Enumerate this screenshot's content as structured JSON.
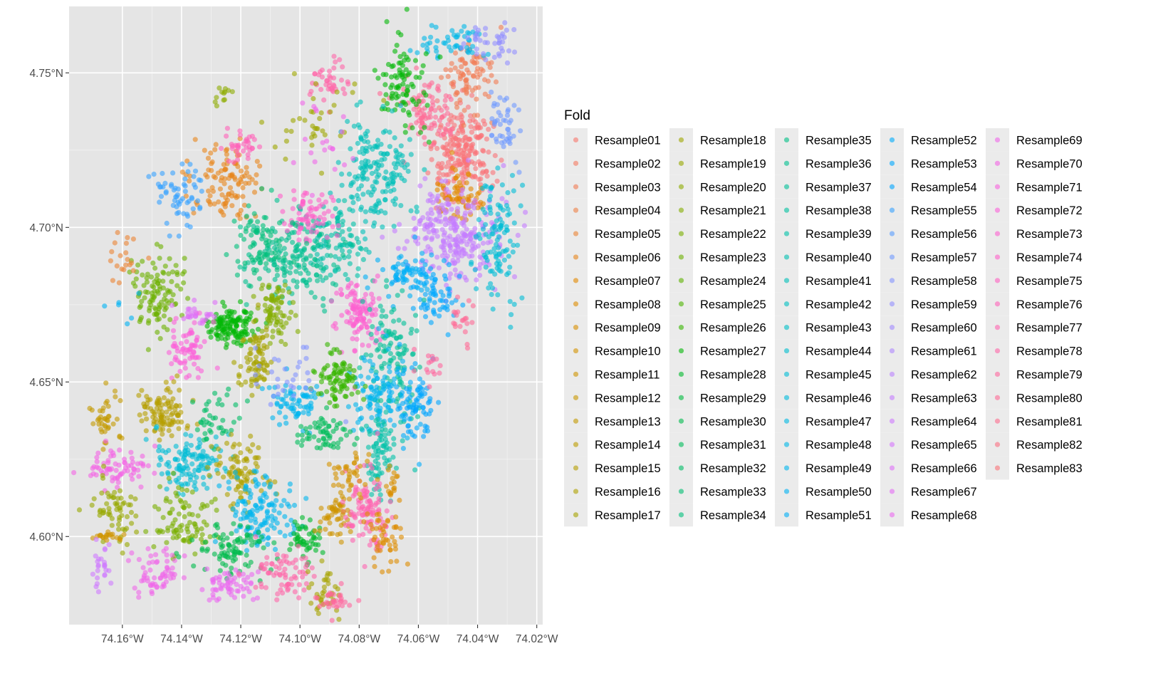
{
  "chart_data": {
    "type": "scatter",
    "title": "",
    "xlabel": "",
    "ylabel": "",
    "xlim": [
      -74.178,
      -74.018
    ],
    "ylim": [
      4.5715,
      4.7715
    ],
    "grid": true,
    "legend_position": "right",
    "legend_title": "Fold",
    "x_ticks": [
      {
        "value": -74.16,
        "label": "74.16°W"
      },
      {
        "value": -74.14,
        "label": "74.14°W"
      },
      {
        "value": -74.12,
        "label": "74.12°W"
      },
      {
        "value": -74.1,
        "label": "74.10°W"
      },
      {
        "value": -74.08,
        "label": "74.08°W"
      },
      {
        "value": -74.06,
        "label": "74.06°W"
      },
      {
        "value": -74.04,
        "label": "74.04°W"
      },
      {
        "value": -74.02,
        "label": "74.02°W"
      }
    ],
    "y_ticks": [
      {
        "value": 4.6,
        "label": "4.60°N"
      },
      {
        "value": 4.65,
        "label": "4.65°N"
      },
      {
        "value": 4.7,
        "label": "4.70°N"
      },
      {
        "value": 4.75,
        "label": "4.75°N"
      }
    ],
    "series_count": 83,
    "series_names": [
      "Resample01",
      "Resample02",
      "Resample03",
      "Resample04",
      "Resample05",
      "Resample06",
      "Resample07",
      "Resample08",
      "Resample09",
      "Resample10",
      "Resample11",
      "Resample12",
      "Resample13",
      "Resample14",
      "Resample15",
      "Resample16",
      "Resample17",
      "Resample18",
      "Resample19",
      "Resample20",
      "Resample21",
      "Resample22",
      "Resample23",
      "Resample24",
      "Resample25",
      "Resample26",
      "Resample27",
      "Resample28",
      "Resample29",
      "Resample30",
      "Resample31",
      "Resample32",
      "Resample33",
      "Resample34",
      "Resample35",
      "Resample36",
      "Resample37",
      "Resample38",
      "Resample39",
      "Resample40",
      "Resample41",
      "Resample42",
      "Resample43",
      "Resample44",
      "Resample45",
      "Resample46",
      "Resample47",
      "Resample48",
      "Resample49",
      "Resample50",
      "Resample51",
      "Resample52",
      "Resample53",
      "Resample54",
      "Resample55",
      "Resample56",
      "Resample57",
      "Resample58",
      "Resample59",
      "Resample60",
      "Resample61",
      "Resample62",
      "Resample63",
      "Resample64",
      "Resample65",
      "Resample66",
      "Resample67",
      "Resample68",
      "Resample69",
      "Resample70",
      "Resample71",
      "Resample72",
      "Resample73",
      "Resample74",
      "Resample75",
      "Resample76",
      "Resample77",
      "Resample78",
      "Resample79",
      "Resample80",
      "Resample81",
      "Resample82",
      "Resample83"
    ],
    "point_alpha": 0.6,
    "clusters": [
      {
        "fold": "Resample83",
        "x": -74.045,
        "y": 4.723,
        "sx": 0.005,
        "sy": 0.008,
        "n": 220
      },
      {
        "fold": "Resample80",
        "x": -74.057,
        "y": 4.736,
        "sx": 0.004,
        "sy": 0.005,
        "n": 90
      },
      {
        "fold": "Resample07",
        "x": -74.047,
        "y": 4.711,
        "sx": 0.0045,
        "sy": 0.004,
        "n": 70
      },
      {
        "fold": "Resample03",
        "x": -74.042,
        "y": 4.748,
        "sx": 0.004,
        "sy": 0.006,
        "n": 80
      },
      {
        "fold": "Resample63",
        "x": -74.049,
        "y": 4.698,
        "sx": 0.008,
        "sy": 0.0075,
        "n": 260
      },
      {
        "fold": "Resample45",
        "x": -74.0335,
        "y": 4.695,
        "sx": 0.0035,
        "sy": 0.011,
        "n": 110
      },
      {
        "fold": "Resample48",
        "x": -74.047,
        "y": 4.76,
        "sx": 0.006,
        "sy": 0.003,
        "n": 50
      },
      {
        "fold": "Resample59",
        "x": -74.034,
        "y": 4.76,
        "sx": 0.004,
        "sy": 0.003,
        "n": 40
      },
      {
        "fold": "Resample57",
        "x": -74.031,
        "y": 4.735,
        "sx": 0.0025,
        "sy": 0.006,
        "n": 45
      },
      {
        "fold": "Resample27",
        "x": -74.065,
        "y": 4.748,
        "sx": 0.004,
        "sy": 0.008,
        "n": 90
      },
      {
        "fold": "Resample41",
        "x": -74.075,
        "y": 4.718,
        "sx": 0.006,
        "sy": 0.01,
        "n": 180
      },
      {
        "fold": "Resample39",
        "x": -74.088,
        "y": 4.696,
        "sx": 0.005,
        "sy": 0.006,
        "n": 90
      },
      {
        "fold": "Resample36",
        "x": -74.102,
        "y": 4.69,
        "sx": 0.008,
        "sy": 0.008,
        "n": 160
      },
      {
        "fold": "Resample51",
        "x": -74.064,
        "y": 4.685,
        "sx": 0.0045,
        "sy": 0.004,
        "n": 70
      },
      {
        "fold": "Resample53",
        "x": -74.054,
        "y": 4.678,
        "sx": 0.004,
        "sy": 0.005,
        "n": 60
      },
      {
        "fold": "Resample73",
        "x": -74.08,
        "y": 4.672,
        "sx": 0.004,
        "sy": 0.006,
        "n": 110
      },
      {
        "fold": "Resample37",
        "x": -74.068,
        "y": 4.66,
        "sx": 0.004,
        "sy": 0.009,
        "n": 110
      },
      {
        "fold": "Resample80",
        "x": -74.046,
        "y": 4.67,
        "sx": 0.002,
        "sy": 0.004,
        "n": 20
      },
      {
        "fold": "Resample74",
        "x": -74.097,
        "y": 4.704,
        "sx": 0.004,
        "sy": 0.004,
        "n": 70
      },
      {
        "fold": "Resample78",
        "x": -74.09,
        "y": 4.748,
        "sx": 0.003,
        "sy": 0.004,
        "n": 40
      },
      {
        "fold": "Resample18",
        "x": -74.095,
        "y": 4.733,
        "sx": 0.007,
        "sy": 0.008,
        "n": 35
      },
      {
        "fold": "Resample06",
        "x": -74.125,
        "y": 4.715,
        "sx": 0.006,
        "sy": 0.006,
        "n": 110
      },
      {
        "fold": "Resample55",
        "x": -74.14,
        "y": 4.71,
        "sx": 0.005,
        "sy": 0.005,
        "n": 60
      },
      {
        "fold": "Resample76",
        "x": -74.119,
        "y": 4.725,
        "sx": 0.003,
        "sy": 0.003,
        "n": 35
      },
      {
        "fold": "Resample34",
        "x": -74.113,
        "y": 4.695,
        "sx": 0.005,
        "sy": 0.006,
        "n": 80
      },
      {
        "fold": "Resample23",
        "x": -74.148,
        "y": 4.679,
        "sx": 0.005,
        "sy": 0.006,
        "n": 110
      },
      {
        "fold": "Resample27",
        "x": -74.123,
        "y": 4.668,
        "sx": 0.004,
        "sy": 0.003,
        "n": 130
      },
      {
        "fold": "Resample21",
        "x": -74.109,
        "y": 4.673,
        "sx": 0.003,
        "sy": 0.005,
        "n": 80
      },
      {
        "fold": "Resample17",
        "x": -74.115,
        "y": 4.656,
        "sx": 0.003,
        "sy": 0.005,
        "n": 80
      },
      {
        "fold": "Resample72",
        "x": -74.138,
        "y": 4.662,
        "sx": 0.003,
        "sy": 0.004,
        "n": 70
      },
      {
        "fold": "Resample66",
        "x": -74.134,
        "y": 4.672,
        "sx": 0.003,
        "sy": 0.002,
        "n": 25
      },
      {
        "fold": "Resample49",
        "x": -74.102,
        "y": 4.644,
        "sx": 0.004,
        "sy": 0.004,
        "n": 70
      },
      {
        "fold": "Resample49",
        "x": -74.074,
        "y": 4.645,
        "sx": 0.004,
        "sy": 0.007,
        "n": 100
      },
      {
        "fold": "Resample26",
        "x": -74.087,
        "y": 4.651,
        "sx": 0.004,
        "sy": 0.004,
        "n": 90
      },
      {
        "fold": "Resample39",
        "x": -74.073,
        "y": 4.626,
        "sx": 0.003,
        "sy": 0.007,
        "n": 80
      },
      {
        "fold": "Resample31",
        "x": -74.092,
        "y": 4.633,
        "sx": 0.004,
        "sy": 0.003,
        "n": 60
      },
      {
        "fold": "Resample58",
        "x": -74.105,
        "y": 4.65,
        "sx": 0.006,
        "sy": 0.007,
        "n": 30
      },
      {
        "fold": "Resample52",
        "x": -74.063,
        "y": 4.643,
        "sx": 0.003,
        "sy": 0.007,
        "n": 40
      },
      {
        "fold": "Resample15",
        "x": -74.145,
        "y": 4.64,
        "sx": 0.004,
        "sy": 0.004,
        "n": 100
      },
      {
        "fold": "Resample13",
        "x": -74.165,
        "y": 4.638,
        "sx": 0.003,
        "sy": 0.005,
        "n": 40
      },
      {
        "fold": "Resample45",
        "x": -74.138,
        "y": 4.625,
        "sx": 0.006,
        "sy": 0.005,
        "n": 120
      },
      {
        "fold": "Resample32",
        "x": -74.129,
        "y": 4.638,
        "sx": 0.004,
        "sy": 0.004,
        "n": 40
      },
      {
        "fold": "Resample70",
        "x": -74.161,
        "y": 4.622,
        "sx": 0.005,
        "sy": 0.003,
        "n": 70
      },
      {
        "fold": "Resample16",
        "x": -74.12,
        "y": 4.62,
        "sx": 0.005,
        "sy": 0.006,
        "n": 90
      },
      {
        "fold": "Resample49",
        "x": -74.112,
        "y": 4.608,
        "sx": 0.006,
        "sy": 0.006,
        "n": 130
      },
      {
        "fold": "Resample22",
        "x": -74.14,
        "y": 4.606,
        "sx": 0.005,
        "sy": 0.006,
        "n": 90
      },
      {
        "fold": "Resample19",
        "x": -74.162,
        "y": 4.608,
        "sx": 0.004,
        "sy": 0.006,
        "n": 60
      },
      {
        "fold": "Resample11",
        "x": -74.164,
        "y": 4.6,
        "sx": 0.003,
        "sy": 0.001,
        "n": 20
      },
      {
        "fold": "Resample30",
        "x": -74.123,
        "y": 4.596,
        "sx": 0.006,
        "sy": 0.004,
        "n": 90
      },
      {
        "fold": "Resample28",
        "x": -74.098,
        "y": 4.599,
        "sx": 0.003,
        "sy": 0.003,
        "n": 50
      },
      {
        "fold": "Resample11",
        "x": -74.088,
        "y": 4.608,
        "sx": 0.003,
        "sy": 0.004,
        "n": 50
      },
      {
        "fold": "Resample68",
        "x": -74.124,
        "y": 4.584,
        "sx": 0.005,
        "sy": 0.003,
        "n": 60
      },
      {
        "fold": "Resample69",
        "x": -74.148,
        "y": 4.588,
        "sx": 0.004,
        "sy": 0.004,
        "n": 60
      },
      {
        "fold": "Resample78",
        "x": -74.106,
        "y": 4.588,
        "sx": 0.005,
        "sy": 0.004,
        "n": 70
      },
      {
        "fold": "Resample17",
        "x": -74.092,
        "y": 4.582,
        "sx": 0.003,
        "sy": 0.004,
        "n": 40
      },
      {
        "fold": "Resample79",
        "x": -74.088,
        "y": 4.58,
        "sx": 0.003,
        "sy": 0.002,
        "n": 30
      },
      {
        "fold": "Resample64",
        "x": -74.167,
        "y": 4.59,
        "sx": 0.002,
        "sy": 0.004,
        "n": 25
      },
      {
        "fold": "Resample77",
        "x": -74.077,
        "y": 4.608,
        "sx": 0.004,
        "sy": 0.007,
        "n": 110
      },
      {
        "fold": "Resample08",
        "x": -74.072,
        "y": 4.6,
        "sx": 0.003,
        "sy": 0.005,
        "n": 50
      },
      {
        "fold": "Resample10",
        "x": -74.083,
        "y": 4.62,
        "sx": 0.003,
        "sy": 0.004,
        "n": 40
      },
      {
        "fold": "Resample09",
        "x": -74.069,
        "y": 4.618,
        "sx": 0.001,
        "sy": 0.003,
        "n": 15
      },
      {
        "fold": "Resample69",
        "x": -74.092,
        "y": 4.725,
        "sx": 0.005,
        "sy": 0.008,
        "n": 20
      },
      {
        "fold": "Resample50",
        "x": -74.161,
        "y": 4.672,
        "sx": 0.004,
        "sy": 0.003,
        "n": 6
      },
      {
        "fold": "Resample05",
        "x": -74.16,
        "y": 4.69,
        "sx": 0.003,
        "sy": 0.004,
        "n": 20
      },
      {
        "fold": "Resample20",
        "x": -74.127,
        "y": 4.742,
        "sx": 0.002,
        "sy": 0.002,
        "n": 12
      },
      {
        "fold": "Resample79",
        "x": -74.056,
        "y": 4.654,
        "sx": 0.002,
        "sy": 0.003,
        "n": 15
      },
      {
        "fold": "Resample54",
        "x": -74.06,
        "y": 4.641,
        "sx": 0.003,
        "sy": 0.005,
        "n": 40
      }
    ]
  },
  "legend": {
    "title": "Fold",
    "columns": [
      [
        "Resample01",
        "Resample02",
        "Resample03",
        "Resample04",
        "Resample05",
        "Resample06",
        "Resample07",
        "Resample08",
        "Resample09",
        "Resample10",
        "Resample11",
        "Resample12",
        "Resample13",
        "Resample14",
        "Resample15",
        "Resample16",
        "Resample17"
      ],
      [
        "Resample18",
        "Resample19",
        "Resample20",
        "Resample21",
        "Resample22",
        "Resample23",
        "Resample24",
        "Resample25",
        "Resample26",
        "Resample27",
        "Resample28",
        "Resample29",
        "Resample30",
        "Resample31",
        "Resample32",
        "Resample33",
        "Resample34"
      ],
      [
        "Resample35",
        "Resample36",
        "Resample37",
        "Resample38",
        "Resample39",
        "Resample40",
        "Resample41",
        "Resample42",
        "Resample43",
        "Resample44",
        "Resample45",
        "Resample46",
        "Resample47",
        "Resample48",
        "Resample49",
        "Resample50",
        "Resample51"
      ],
      [
        "Resample52",
        "Resample53",
        "Resample54",
        "Resample55",
        "Resample56",
        "Resample57",
        "Resample58",
        "Resample59",
        "Resample60",
        "Resample61",
        "Resample62",
        "Resample63",
        "Resample64",
        "Resample65",
        "Resample66",
        "Resample67",
        "Resample68"
      ],
      [
        "Resample69",
        "Resample70",
        "Resample71",
        "Resample72",
        "Resample73",
        "Resample74",
        "Resample75",
        "Resample76",
        "Resample77",
        "Resample78",
        "Resample79",
        "Resample80",
        "Resample81",
        "Resample82",
        "Resample83"
      ]
    ]
  },
  "colors": {
    "panel_background": "#E5E5E5",
    "grid_major": "#FFFFFF",
    "axis_text": "#4D4D4D",
    "legend_key_background": "#EBEBEB"
  }
}
